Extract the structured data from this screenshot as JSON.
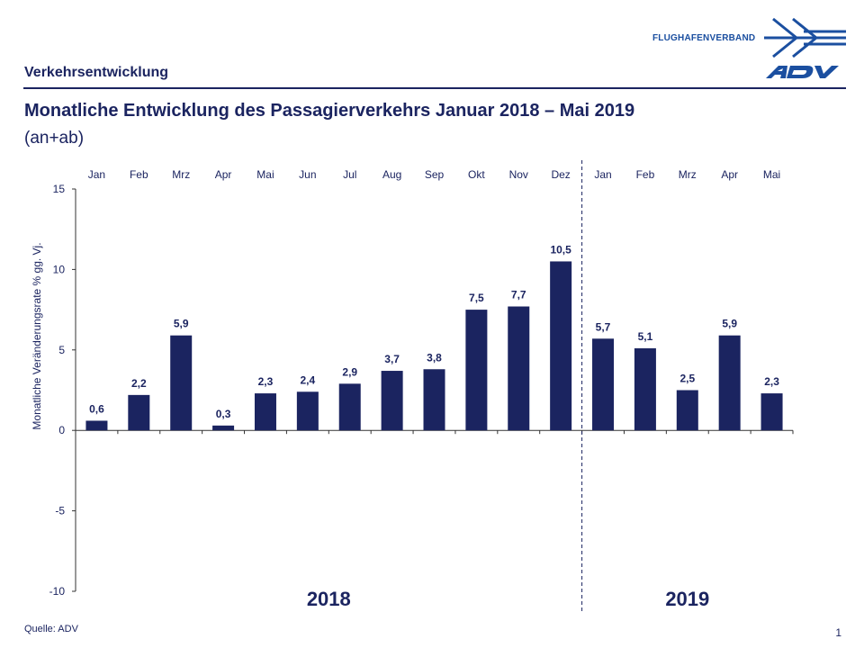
{
  "header": {
    "section_title": "Verkehrsentwicklung",
    "logo_text": "FLUGHAFENVERBAND",
    "logo_mark": "ADV",
    "brand_color": "#1b2460",
    "logo_color": "#1b4fa0"
  },
  "title": {
    "main": "Monatliche Entwicklung des Passagierverkehrs  Januar 2018 – Mai 2019",
    "sub": "(an+ab)"
  },
  "footer": {
    "source": "Quelle: ADV",
    "page": "1"
  },
  "chart_data": {
    "type": "bar",
    "categories": [
      "Jan",
      "Feb",
      "Mrz",
      "Apr",
      "Mai",
      "Jun",
      "Jul",
      "Aug",
      "Sep",
      "Okt",
      "Nov",
      "Dez",
      "Jan",
      "Feb",
      "Mrz",
      "Apr",
      "Mai"
    ],
    "values": [
      0.6,
      2.2,
      5.9,
      0.3,
      2.3,
      2.4,
      2.9,
      3.7,
      3.8,
      7.5,
      7.7,
      10.5,
      5.7,
      5.1,
      2.5,
      5.9,
      2.3
    ],
    "value_labels": [
      "0,6",
      "2,2",
      "5,9",
      "0,3",
      "2,3",
      "2,4",
      "2,9",
      "3,7",
      "3,8",
      "7,5",
      "7,7",
      "10,5",
      "5,7",
      "5,1",
      "2,5",
      "5,9",
      "2,3"
    ],
    "year_groups": [
      {
        "label": "2018",
        "start": 0,
        "end": 11
      },
      {
        "label": "2019",
        "start": 12,
        "end": 16
      }
    ],
    "ylabel": "Monatliche Veränderungsrate % gg. Vj.",
    "ylim": [
      -10,
      15
    ],
    "yticks": [
      -10,
      -5,
      0,
      5,
      10,
      15
    ],
    "ytick_labels": [
      "-10",
      "-5",
      "0",
      "5",
      "10",
      "15"
    ],
    "bar_color": "#1b2460",
    "grid": false,
    "legend": "none"
  }
}
